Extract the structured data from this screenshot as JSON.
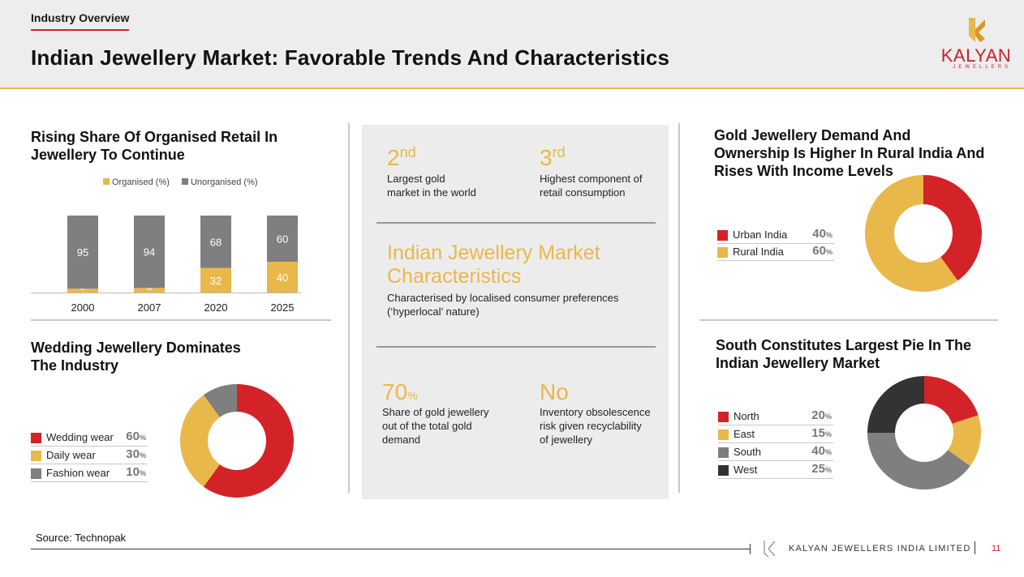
{
  "header": {
    "section_tag": "Industry Overview",
    "title": "Indian Jewellery Market: Favorable Trends And Characteristics",
    "logo_name": "KALYAN",
    "logo_sub": "JEWELLERS"
  },
  "colors": {
    "red": "#d42328",
    "gold": "#e8b84a",
    "grey": "#7f7f7f",
    "dark": "#333333"
  },
  "panel_retail": {
    "title_line1": "Rising Share Of Organised Retail In",
    "title_line2": "Jewellery To Continue",
    "legend_organised": "Organised (%)",
    "legend_unorganised": "Unorganised (%)"
  },
  "panel_wedding": {
    "title_line1": "Wedding Jewellery Dominates",
    "title_line2": "The Industry"
  },
  "panel_rural": {
    "title_line1": "Gold Jewellery Demand And",
    "title_line2": "Ownership Is Higher In Rural India And",
    "title_line3": "Rises With Income Levels"
  },
  "panel_south": {
    "title_line1": "South Constitutes Largest Pie In The",
    "title_line2": "Indian Jewellery Market"
  },
  "center": {
    "stat1_num": "2",
    "stat1_sup": "nd",
    "stat1_desc_l1": "Largest gold",
    "stat1_desc_l2": "market in the world",
    "stat2_num": "3",
    "stat2_sup": "rd",
    "stat2_desc_l1": "Highest component of",
    "stat2_desc_l2": "retail consumption",
    "char_title_l1": "Indian Jewellery Market",
    "char_title_l2": "Characteristics",
    "char_desc_l1": "Characterised by localised consumer preferences",
    "char_desc_l2": "(‘hyperlocal’ nature)",
    "stat3_num": "70",
    "stat3_unit": "%",
    "stat3_desc_l1": "Share of gold jewellery",
    "stat3_desc_l2": "out of the total gold",
    "stat3_desc_l3": "demand",
    "stat4_num": "No",
    "stat4_desc_l1": "Inventory obsolescence",
    "stat4_desc_l2": "risk given recyclability",
    "stat4_desc_l3": "of jewellery"
  },
  "footer": {
    "source": "Source: Technopak",
    "company": "KALYAN JEWELLERS INDIA LIMITED",
    "page": "11"
  },
  "chart_data": [
    {
      "type": "bar",
      "stacked": true,
      "categories": [
        "2000",
        "2007",
        "2020",
        "2025"
      ],
      "series": [
        {
          "name": "Organised (%)",
          "values": [
            5,
            6,
            32,
            40
          ],
          "color": "#e8b84a"
        },
        {
          "name": "Unorganised (%)",
          "values": [
            95,
            94,
            68,
            60
          ],
          "color": "#7f7f7f"
        }
      ],
      "ylim": [
        0,
        100
      ],
      "legend": "top"
    },
    {
      "type": "pie",
      "donut": true,
      "labels": [
        "Wedding wear",
        "Daily wear",
        "Fashion wear"
      ],
      "values": [
        60,
        30,
        10
      ],
      "display": [
        "60",
        "30",
        "10"
      ],
      "colors": [
        "#d42328",
        "#e8b84a",
        "#7f7f7f"
      ],
      "legend": "left"
    },
    {
      "type": "pie",
      "donut": true,
      "labels": [
        "Urban India",
        "Rural India"
      ],
      "values": [
        40,
        60
      ],
      "display": [
        "40",
        "60"
      ],
      "colors": [
        "#d42328",
        "#e8b84a"
      ],
      "legend": "left"
    },
    {
      "type": "pie",
      "donut": true,
      "labels": [
        "North",
        "East",
        "South",
        "West"
      ],
      "values": [
        20,
        15,
        40,
        25
      ],
      "display": [
        "20",
        "15",
        "40",
        "25"
      ],
      "colors": [
        "#d42328",
        "#e8b84a",
        "#7f7f7f",
        "#333333"
      ],
      "legend": "left"
    }
  ]
}
